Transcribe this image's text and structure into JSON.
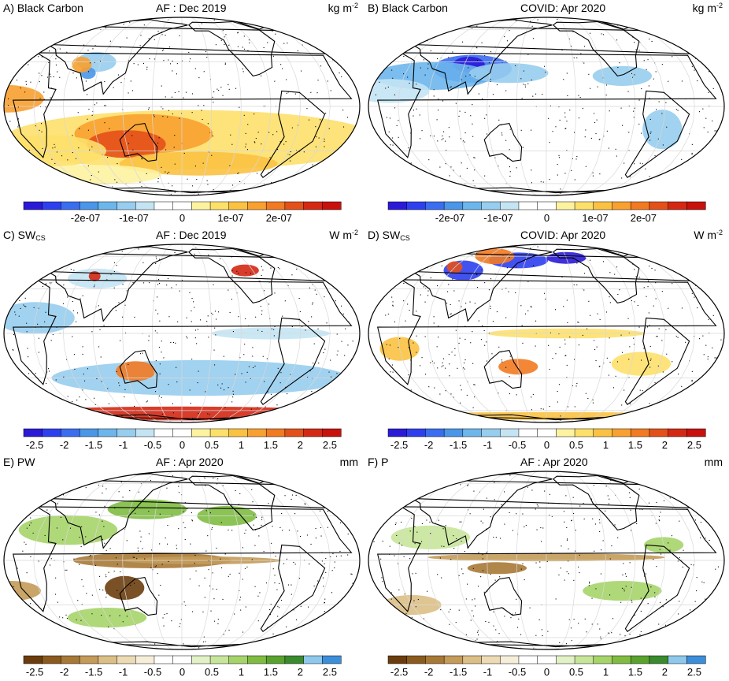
{
  "panels": [
    {
      "id": "A",
      "left_title": "A) Black Carbon",
      "center_title": "AF : Dec 2019",
      "unit": "kg m",
      "unit_exp": "-2",
      "colorbar": {
        "labels": [
          "-2e-07",
          "-1e-07",
          "0",
          "1e-07",
          "2e-07"
        ],
        "palette": "blue-red"
      }
    },
    {
      "id": "B",
      "left_title": "B) Black Carbon",
      "center_title": "COVID: Apr 2020",
      "unit": "kg m",
      "unit_exp": "-2",
      "colorbar": {
        "labels": [
          "-2e-07",
          "-1e-07",
          "0",
          "1e-07",
          "2e-07"
        ],
        "palette": "blue-red"
      }
    },
    {
      "id": "C",
      "left_title": "C) SW",
      "left_title_sub": "CS",
      "center_title": "AF : Dec 2019",
      "unit": "W m",
      "unit_exp": "-2",
      "colorbar": {
        "labels": [
          "-2.5",
          "-2",
          "-1.5",
          "-1",
          "-0.5",
          "0",
          "0.5",
          "1",
          "1.5",
          "2",
          "2.5"
        ],
        "palette": "blue-red"
      }
    },
    {
      "id": "D",
      "left_title": "D) SW",
      "left_title_sub": "CS",
      "center_title": "COVID: Apr 2020",
      "unit": "W m",
      "unit_exp": "-2",
      "colorbar": {
        "labels": [
          "-2.5",
          "-2",
          "-1.5",
          "-1",
          "-0.5",
          "0",
          "0.5",
          "1",
          "1.5",
          "2",
          "2.5"
        ],
        "palette": "blue-red"
      }
    },
    {
      "id": "E",
      "left_title": "E) PW",
      "center_title": "AF : Apr 2020",
      "unit": "mm",
      "colorbar": {
        "labels": [
          "-2.5",
          "-2",
          "-1.5",
          "-1",
          "-0.5",
          "0",
          "0.5",
          "1",
          "1.5",
          "2",
          "2.5"
        ],
        "palette": "brown-green"
      }
    },
    {
      "id": "F",
      "left_title": "F) P",
      "center_title": "AF : Apr 2020",
      "unit": "mm",
      "colorbar": {
        "labels": [
          "-2.5",
          "-2",
          "-1.5",
          "-1",
          "-0.5",
          "0",
          "0.5",
          "1",
          "1.5",
          "2",
          "2.5"
        ],
        "palette": "brown-green"
      }
    }
  ],
  "palettes": {
    "blue-red": [
      "#2a1ad8",
      "#2e3ff0",
      "#3a6df0",
      "#4a96e8",
      "#6cb6ec",
      "#97cdee",
      "#c4e4f4",
      "#ffffff",
      "#ffffff",
      "#fdf2a0",
      "#fde06a",
      "#fbc242",
      "#f8a030",
      "#f27a22",
      "#e4501a",
      "#d42814",
      "#c8100c"
    ],
    "brown-green": [
      "#6b3d0e",
      "#8a5a1e",
      "#a77936",
      "#c49b58",
      "#dcbf86",
      "#ecdbb4",
      "#f6eed8",
      "#ffffff",
      "#ffffff",
      "#e2f2c6",
      "#c8e69a",
      "#a6d46a",
      "#80bc42",
      "#5aa22e",
      "#3a8a2e",
      "#8ec8ea",
      "#3c8ed8"
    ]
  },
  "colors": {
    "gridline": "#d8d8d8",
    "coast": "#000000",
    "stipple": "#000000"
  }
}
